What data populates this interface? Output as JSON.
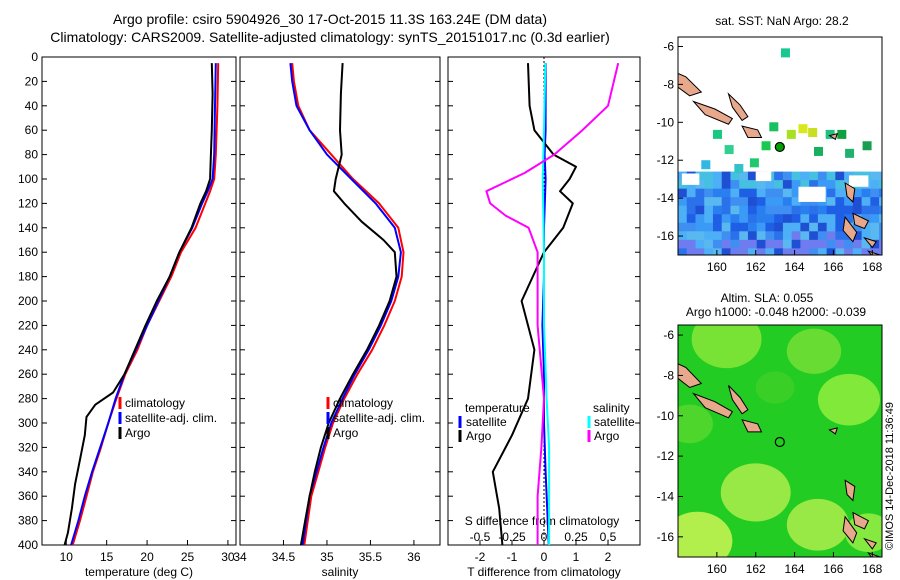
{
  "header": {
    "title_line1": "Argo profile: csiro 5904926_30 17-Oct-2015 11.3S 163.24E (DM data)",
    "title_line2": "Climatology: CARS2009. Satellite-adjusted climatology: synTS_20151017.nc (0.3d earlier)"
  },
  "footer": {
    "stamp": "©IMOS 14-Dec-2018 11:36:49"
  },
  "chart_data": [
    {
      "type": "line",
      "id": "temperature",
      "xlabel": "temperature (deg C)",
      "xlim": [
        7,
        31
      ],
      "ylim": [
        400,
        0
      ],
      "xticks": [
        10,
        15,
        20,
        25,
        30
      ],
      "yticks": [
        0,
        20,
        40,
        60,
        80,
        100,
        120,
        140,
        160,
        180,
        200,
        220,
        240,
        260,
        280,
        300,
        320,
        340,
        360,
        380,
        400
      ],
      "series": [
        {
          "name": "climatology",
          "color": "#ff0000",
          "points": [
            [
              28.8,
              5
            ],
            [
              28.7,
              40
            ],
            [
              28.5,
              80
            ],
            [
              28.3,
              100
            ],
            [
              27.8,
              110
            ],
            [
              27.2,
              120
            ],
            [
              26.0,
              140
            ],
            [
              24.2,
              160
            ],
            [
              23.0,
              180
            ],
            [
              21.5,
              200
            ],
            [
              20.0,
              220
            ],
            [
              18.8,
              240
            ],
            [
              17.3,
              260
            ],
            [
              16.2,
              280
            ],
            [
              15.2,
              300
            ],
            [
              14.3,
              320
            ],
            [
              13.3,
              340
            ],
            [
              12.5,
              360
            ],
            [
              11.7,
              380
            ],
            [
              10.8,
              400
            ]
          ]
        },
        {
          "name": "satellite-adj. clim.",
          "color": "#0000ff",
          "points": [
            [
              28.5,
              5
            ],
            [
              28.4,
              40
            ],
            [
              28.3,
              80
            ],
            [
              28.1,
              100
            ],
            [
              27.5,
              110
            ],
            [
              26.8,
              120
            ],
            [
              25.6,
              140
            ],
            [
              24.0,
              160
            ],
            [
              22.8,
              180
            ],
            [
              21.4,
              200
            ],
            [
              20.0,
              220
            ],
            [
              18.6,
              240
            ],
            [
              17.2,
              260
            ],
            [
              16.1,
              280
            ],
            [
              15.2,
              300
            ],
            [
              14.2,
              320
            ],
            [
              13.2,
              340
            ],
            [
              12.3,
              360
            ],
            [
              11.5,
              380
            ],
            [
              10.6,
              400
            ]
          ]
        },
        {
          "name": "Argo",
          "color": "#000000",
          "points": [
            [
              28.0,
              5
            ],
            [
              28.1,
              30
            ],
            [
              28.0,
              60
            ],
            [
              27.9,
              80
            ],
            [
              27.8,
              100
            ],
            [
              27.3,
              110
            ],
            [
              26.6,
              120
            ],
            [
              25.5,
              140
            ],
            [
              24.0,
              160
            ],
            [
              22.8,
              180
            ],
            [
              21.2,
              200
            ],
            [
              19.8,
              220
            ],
            [
              18.5,
              240
            ],
            [
              17.2,
              260
            ],
            [
              15.8,
              275
            ],
            [
              13.6,
              285
            ],
            [
              12.5,
              295
            ],
            [
              12.3,
              310
            ],
            [
              11.7,
              330
            ],
            [
              11.1,
              350
            ],
            [
              10.7,
              370
            ],
            [
              10.2,
              390
            ],
            [
              9.8,
              400
            ]
          ]
        }
      ],
      "legend": [
        "climatology",
        "satellite-adj. clim.",
        "Argo"
      ]
    },
    {
      "type": "line",
      "id": "salinity",
      "xlabel": "salinity",
      "xlim": [
        34,
        36.3
      ],
      "ylim": [
        400,
        0
      ],
      "xticks": [
        34,
        34.5,
        35,
        35.5,
        36
      ],
      "series": [
        {
          "name": "climatology",
          "color": "#ff0000",
          "points": [
            [
              34.6,
              5
            ],
            [
              34.62,
              20
            ],
            [
              34.67,
              40
            ],
            [
              34.8,
              60
            ],
            [
              35.05,
              80
            ],
            [
              35.3,
              100
            ],
            [
              35.6,
              120
            ],
            [
              35.82,
              140
            ],
            [
              35.88,
              160
            ],
            [
              35.86,
              180
            ],
            [
              35.78,
              200
            ],
            [
              35.66,
              220
            ],
            [
              35.52,
              240
            ],
            [
              35.35,
              260
            ],
            [
              35.2,
              280
            ],
            [
              35.07,
              300
            ],
            [
              34.98,
              320
            ],
            [
              34.9,
              340
            ],
            [
              34.82,
              360
            ],
            [
              34.78,
              380
            ],
            [
              34.74,
              400
            ]
          ]
        },
        {
          "name": "satellite-adj. clim.",
          "color": "#0000ff",
          "points": [
            [
              34.58,
              5
            ],
            [
              34.6,
              20
            ],
            [
              34.65,
              40
            ],
            [
              34.8,
              60
            ],
            [
              35.0,
              80
            ],
            [
              35.28,
              100
            ],
            [
              35.56,
              120
            ],
            [
              35.78,
              140
            ],
            [
              35.85,
              160
            ],
            [
              35.82,
              180
            ],
            [
              35.74,
              200
            ],
            [
              35.62,
              220
            ],
            [
              35.48,
              240
            ],
            [
              35.32,
              260
            ],
            [
              35.18,
              280
            ],
            [
              35.05,
              300
            ],
            [
              34.96,
              320
            ],
            [
              34.88,
              340
            ],
            [
              34.8,
              360
            ],
            [
              34.76,
              380
            ],
            [
              34.72,
              400
            ]
          ]
        },
        {
          "name": "Argo",
          "color": "#000000",
          "points": [
            [
              35.18,
              5
            ],
            [
              35.16,
              30
            ],
            [
              35.15,
              60
            ],
            [
              35.17,
              80
            ],
            [
              35.1,
              100
            ],
            [
              35.08,
              110
            ],
            [
              35.2,
              120
            ],
            [
              35.4,
              135
            ],
            [
              35.65,
              150
            ],
            [
              35.78,
              160
            ],
            [
              35.8,
              180
            ],
            [
              35.72,
              200
            ],
            [
              35.6,
              220
            ],
            [
              35.46,
              240
            ],
            [
              35.3,
              260
            ],
            [
              35.15,
              280
            ],
            [
              35.02,
              300
            ],
            [
              34.93,
              320
            ],
            [
              34.86,
              340
            ],
            [
              34.8,
              360
            ],
            [
              34.75,
              380
            ],
            [
              34.7,
              400
            ]
          ]
        }
      ],
      "legend": [
        "climatology",
        "satellite-adj. clim.",
        "Argo"
      ]
    },
    {
      "type": "line",
      "id": "differences",
      "xlabel": "T difference from climatology",
      "top_axis_label": "S difference from climatology",
      "xlim": [
        -3,
        3
      ],
      "ylim": [
        400,
        0
      ],
      "xticks": [
        -2,
        -1,
        0,
        1,
        2
      ],
      "s_xlim": [
        -0.75,
        0.75
      ],
      "s_xticks": [
        -0.5,
        -0.25,
        0,
        0.25,
        0.5
      ],
      "series": [
        {
          "name": "temperature satellite",
          "axis": "T",
          "color": "#0000ff",
          "points": [
            [
              0.05,
              5
            ],
            [
              0.05,
              60
            ],
            [
              0.02,
              80
            ],
            [
              0.05,
              100
            ],
            [
              0.0,
              140
            ],
            [
              0.0,
              180
            ],
            [
              -0.05,
              220
            ],
            [
              0.0,
              260
            ],
            [
              0.0,
              300
            ],
            [
              0.05,
              340
            ],
            [
              0.1,
              370
            ],
            [
              0.15,
              400
            ]
          ]
        },
        {
          "name": "temperature Argo",
          "axis": "T",
          "color": "#000000",
          "points": [
            [
              -0.5,
              5
            ],
            [
              -0.45,
              40
            ],
            [
              -0.3,
              60
            ],
            [
              0.3,
              80
            ],
            [
              1.0,
              90
            ],
            [
              0.8,
              100
            ],
            [
              0.5,
              110
            ],
            [
              0.9,
              120
            ],
            [
              0.6,
              140
            ],
            [
              0.0,
              160
            ],
            [
              -0.7,
              200
            ],
            [
              -0.3,
              240
            ],
            [
              -0.5,
              280
            ],
            [
              -1.0,
              310
            ],
            [
              -1.6,
              340
            ],
            [
              -1.4,
              370
            ],
            [
              -1.3,
              400
            ]
          ]
        },
        {
          "name": "salinity satellite",
          "axis": "S",
          "color": "#00ffff",
          "points": [
            [
              0.01,
              5
            ],
            [
              0.0,
              60
            ],
            [
              -0.01,
              100
            ],
            [
              0.0,
              160
            ],
            [
              0.0,
              220
            ],
            [
              0.02,
              280
            ],
            [
              0.04,
              320
            ],
            [
              0.04,
              360
            ],
            [
              0.04,
              400
            ]
          ]
        },
        {
          "name": "salinity Argo",
          "axis": "S",
          "color": "#ff00ff",
          "points": [
            [
              0.58,
              5
            ],
            [
              0.5,
              40
            ],
            [
              0.3,
              60
            ],
            [
              0.08,
              80
            ],
            [
              -0.15,
              95
            ],
            [
              -0.45,
              110
            ],
            [
              -0.42,
              120
            ],
            [
              -0.3,
              130
            ],
            [
              -0.12,
              140
            ],
            [
              -0.05,
              160
            ],
            [
              -0.05,
              220
            ],
            [
              0.0,
              280
            ],
            [
              -0.02,
              320
            ],
            [
              -0.05,
              360
            ],
            [
              -0.05,
              400
            ]
          ]
        }
      ],
      "legend_headings": [
        "temperature",
        "salinity"
      ],
      "legend": [
        "satellite",
        "Argo",
        "satellite",
        "Argo"
      ]
    },
    {
      "type": "heatmap",
      "id": "sst_map",
      "title": "sat. SST: NaN Argo: 28.2",
      "xlim": [
        158,
        168.5
      ],
      "ylim": [
        -17,
        -5.5
      ],
      "xticks": [
        160,
        162,
        164,
        166,
        168
      ],
      "yticks": [
        -6,
        -8,
        -10,
        -12,
        -14,
        -16
      ],
      "argo_position": [
        163.24,
        -11.3
      ],
      "colors": {
        "water": "#ffffff",
        "land": "#e8a88c",
        "marker": "#00a000"
      }
    },
    {
      "type": "heatmap",
      "id": "sla_map",
      "title_line1": "Altim. SLA: 0.055",
      "title_line2": "Argo h1000: -0.048 h2000: -0.039",
      "xlim": [
        158,
        168.5
      ],
      "ylim": [
        -17,
        -5.5
      ],
      "xticks": [
        160,
        162,
        164,
        166,
        168
      ],
      "yticks": [
        -6,
        -8,
        -10,
        -12,
        -14,
        -16
      ],
      "argo_position": [
        163.24,
        -11.3
      ],
      "colors": {
        "background": "#22cc22",
        "land": "#e8a88c"
      }
    }
  ]
}
